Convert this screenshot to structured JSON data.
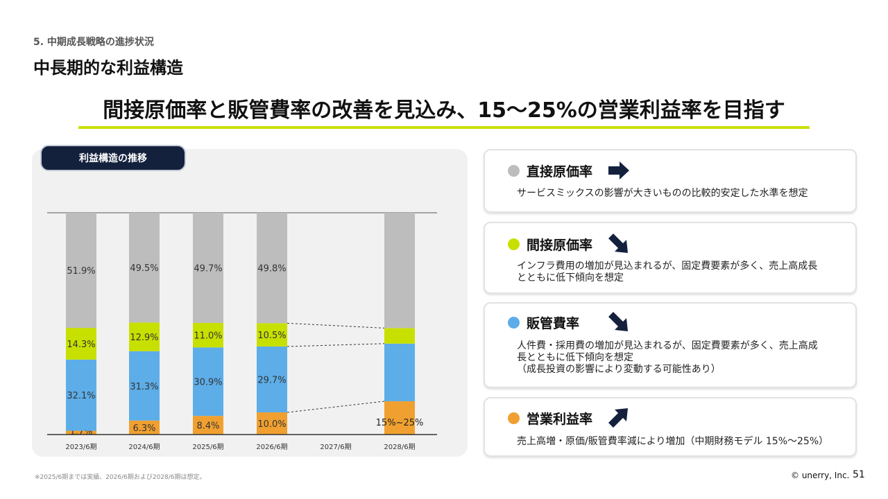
{
  "header": {
    "section_label": "5. 中期成長戦略の進捗状況",
    "page_title": "中長期的な利益構造",
    "headline": "間接原価率と販管費率の改善を見込み、15〜25%の営業利益率を目指す"
  },
  "chart_panel": {
    "pill_label": "利益構造の推移"
  },
  "chart_data": {
    "type": "bar",
    "stacked": true,
    "categories": [
      "2023/6期",
      "2024/6期",
      "2025/6期",
      "2026/6期",
      "2027/6期",
      "2028/6期"
    ],
    "series": [
      {
        "name": "営業利益率",
        "color": "#f0a030",
        "values": [
          1.7,
          6.3,
          8.4,
          10.0,
          null,
          null
        ],
        "labels": [
          "1.7%",
          "6.3%",
          "8.4%",
          "10.0%",
          null,
          "15%~25%"
        ]
      },
      {
        "name": "販管費率",
        "color": "#5dade8",
        "values": [
          32.1,
          31.3,
          30.9,
          29.7,
          null,
          null
        ],
        "labels": [
          "32.1%",
          "31.3%",
          "30.9%",
          "29.7%",
          null,
          null
        ]
      },
      {
        "name": "間接原価率",
        "color": "#c8e000",
        "values": [
          14.3,
          12.9,
          11.0,
          10.5,
          null,
          null
        ],
        "labels": [
          "14.3%",
          "12.9%",
          "11.0%",
          "10.5%",
          null,
          null
        ]
      },
      {
        "name": "直接原価率",
        "color": "#bdbdbd",
        "values": [
          51.9,
          49.5,
          49.7,
          49.8,
          null,
          null
        ],
        "labels": [
          "51.9%",
          "49.5%",
          "49.7%",
          "49.8%",
          null,
          null
        ]
      }
    ],
    "projection_2028": {
      "operating_margin_range": [
        15,
        25
      ],
      "sga_upper": 41,
      "indirect_upper": 48
    },
    "ylim": [
      0,
      100
    ],
    "grid": false,
    "legend": "none"
  },
  "cards": [
    {
      "title": "直接原価率",
      "dot_color": "#bdbdbd",
      "arrow": "right-arrow-icon",
      "desc": [
        "サービスミックスの影響が大きいものの比較的安定した水準を想定"
      ]
    },
    {
      "title": "間接原価率",
      "dot_color": "#c8e000",
      "arrow": "down-right-arrow-icon",
      "desc": [
        "インフラ費用の増加が見込まれるが、固定費要素が多く、売上高成長",
        "とともに低下傾向を想定"
      ]
    },
    {
      "title": "販管費率",
      "dot_color": "#5dade8",
      "arrow": "down-right-arrow-icon",
      "desc": [
        "人件費・採用費の増加が見込まれるが、固定費要素が多く、売上高成",
        "長とともに低下傾向を想定",
        "（成長投資の影響により変動する可能性あり）"
      ]
    },
    {
      "title": "営業利益率",
      "dot_color": "#f0a030",
      "arrow": "up-right-arrow-icon",
      "desc": [
        "売上高増・原価/販管費率減により増加（中期財務モデル 15%〜25%）"
      ]
    }
  ],
  "footer": {
    "footnote": "※2025/6期までは実績、2026/6期および2028/6期は想定。",
    "copyright": "© unerry, Inc.",
    "page_number": "51"
  }
}
